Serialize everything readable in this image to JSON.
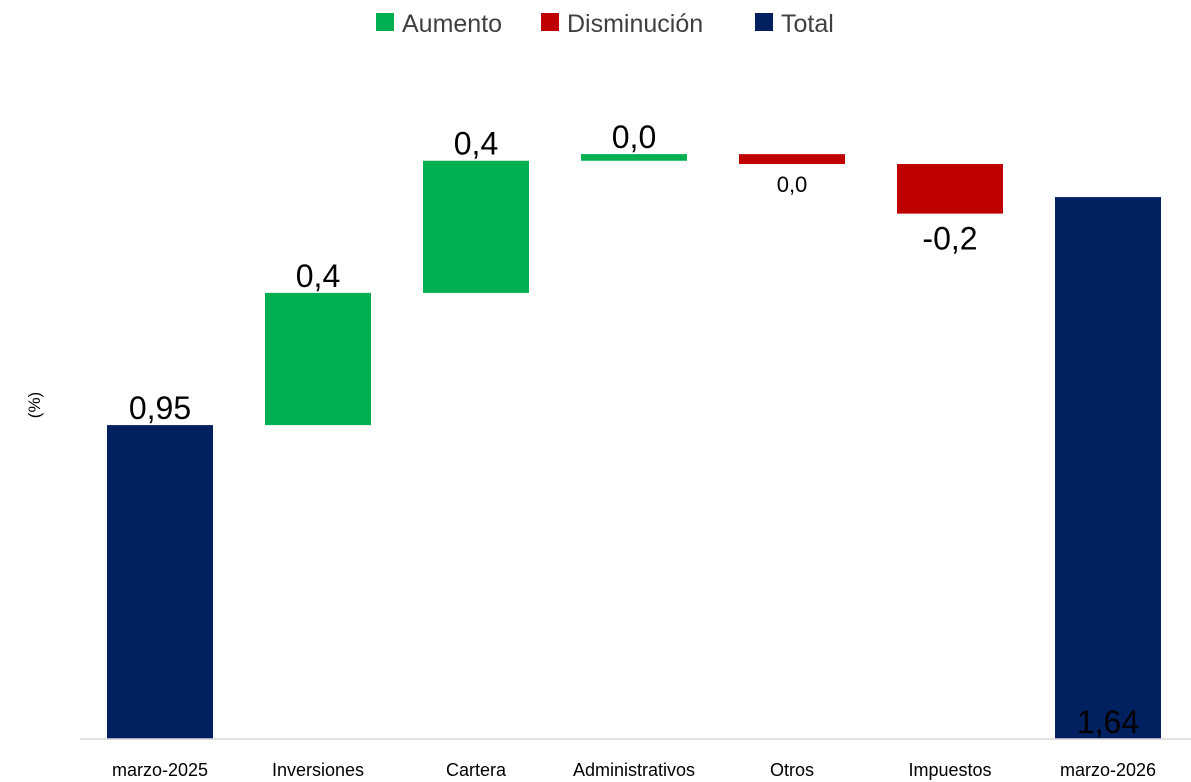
{
  "chart_data": {
    "type": "waterfall",
    "title": "",
    "xlabel": "",
    "ylabel": "(%)",
    "grid": false,
    "legend_position": "top",
    "legend": [
      {
        "key": "increase",
        "label": "Aumento",
        "color": "#00B050"
      },
      {
        "key": "decrease",
        "label": "Disminución",
        "color": "#C00000"
      },
      {
        "key": "total",
        "label": "Total",
        "color": "#002060"
      }
    ],
    "categories": [
      "marzo-2025",
      "Inversiones",
      "Cartera",
      "Administrativos",
      "Otros",
      "Impuestos",
      "marzo-2026"
    ],
    "points": [
      {
        "category": "marzo-2025",
        "kind": "total",
        "value": 0.95,
        "label": "0,95"
      },
      {
        "category": "Inversiones",
        "kind": "increase",
        "value": 0.4,
        "label": "0,4"
      },
      {
        "category": "Cartera",
        "kind": "increase",
        "value": 0.4,
        "label": "0,4"
      },
      {
        "category": "Administrativos",
        "kind": "increase",
        "value": 0.02,
        "label": "0,0"
      },
      {
        "category": "Otros",
        "kind": "decrease",
        "value": -0.03,
        "label": "0,0"
      },
      {
        "category": "Impuestos",
        "kind": "decrease",
        "value": -0.15,
        "label": "-0,2"
      },
      {
        "category": "marzo-2026",
        "kind": "total",
        "value": 1.64,
        "label": "1,64"
      }
    ],
    "ylim": [
      0,
      2.07
    ]
  }
}
